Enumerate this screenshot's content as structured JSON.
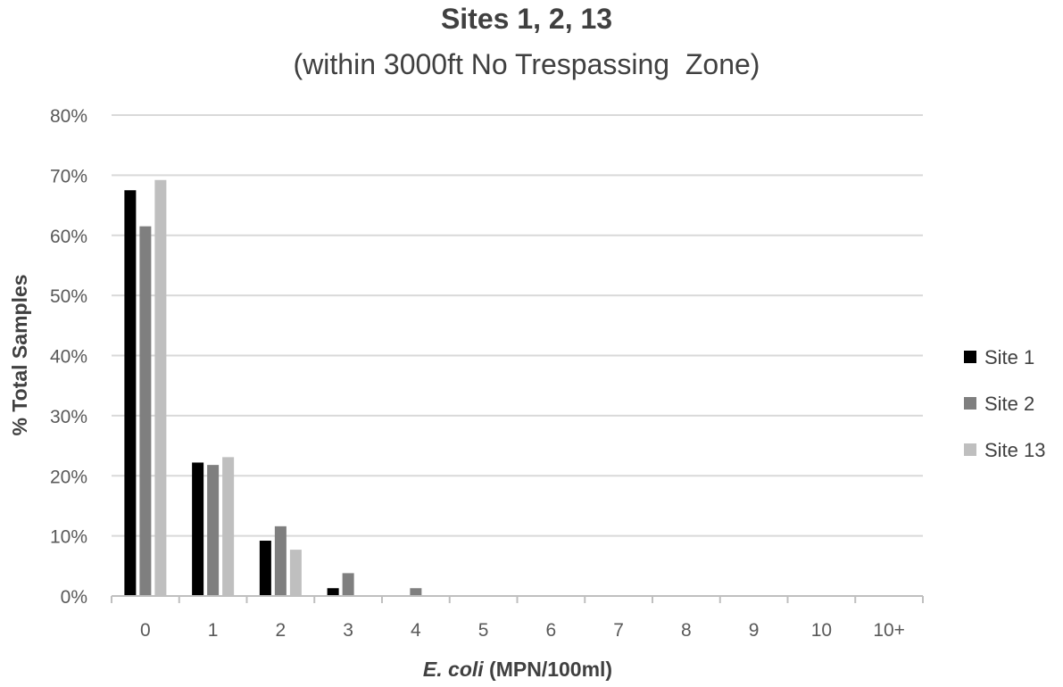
{
  "chart_data": {
    "type": "bar",
    "title": "Sites 1, 2, 13",
    "subtitle": "(within 3000ft No Trespassing  Zone)",
    "xlabel_italic": "E. coli",
    "xlabel_rest": " (MPN/100ml)",
    "ylabel": "% Total Samples",
    "ylim": [
      0,
      80
    ],
    "yticks": [
      0,
      10,
      20,
      30,
      40,
      50,
      60,
      70,
      80
    ],
    "ytick_suffix": "%",
    "categories": [
      "0",
      "1",
      "2",
      "3",
      "4",
      "5",
      "6",
      "7",
      "8",
      "9",
      "10",
      "10+"
    ],
    "series": [
      {
        "name": "Site 1",
        "color": "#000000",
        "values": [
          67.5,
          22.2,
          9.2,
          1.3,
          0,
          0,
          0,
          0,
          0,
          0,
          0,
          0
        ]
      },
      {
        "name": "Site 2",
        "color": "#7f7f7f",
        "values": [
          61.5,
          21.8,
          11.6,
          3.8,
          1.3,
          0,
          0,
          0,
          0,
          0,
          0,
          0
        ]
      },
      {
        "name": "Site 13",
        "color": "#bfbfbf",
        "values": [
          69.2,
          23.1,
          7.7,
          0,
          0,
          0,
          0,
          0,
          0,
          0,
          0,
          0
        ]
      }
    ],
    "grid": true,
    "legend_position": "right"
  }
}
